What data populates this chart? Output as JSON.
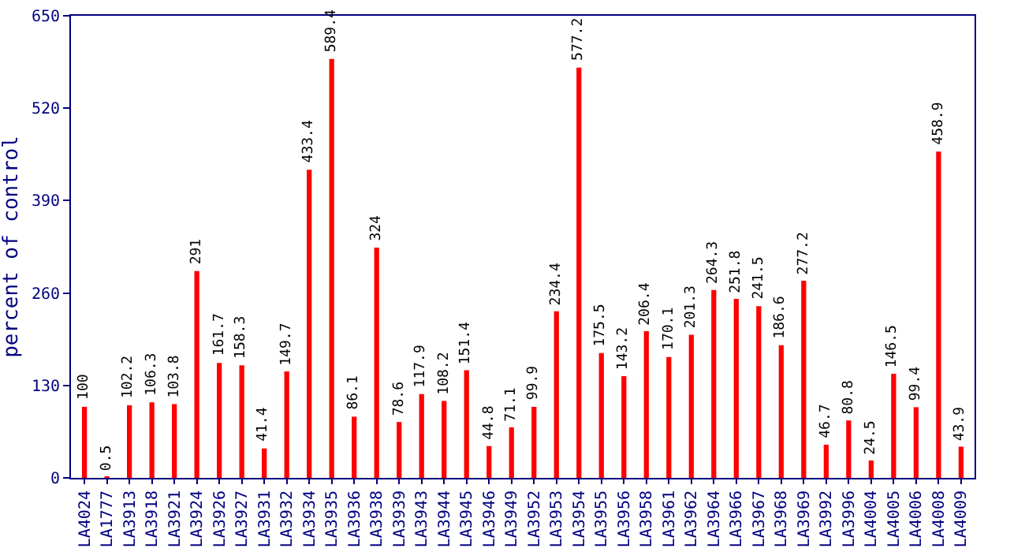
{
  "chart_data": {
    "type": "bar",
    "ylabel": "percent of control",
    "categories": [
      "LA4024",
      "LA1777",
      "LA3913",
      "LA3918",
      "LA3921",
      "LA3924",
      "LA3926",
      "LA3927",
      "LA3931",
      "LA3932",
      "LA3934",
      "LA3935",
      "LA3936",
      "LA3938",
      "LA3939",
      "LA3943",
      "LA3944",
      "LA3945",
      "LA3946",
      "LA3949",
      "LA3952",
      "LA3953",
      "LA3954",
      "LA3955",
      "LA3956",
      "LA3958",
      "LA3961",
      "LA3962",
      "LA3964",
      "LA3966",
      "LA3967",
      "LA3968",
      "LA3969",
      "LA3992",
      "LA3996",
      "LA4004",
      "LA4005",
      "LA4006",
      "LA4008",
      "LA4009"
    ],
    "values": [
      100,
      0.5,
      102.2,
      106.3,
      103.8,
      291,
      161.7,
      158.3,
      41.4,
      149.7,
      433.4,
      589.4,
      86.1,
      324,
      78.6,
      117.9,
      108.2,
      151.4,
      44.8,
      71.1,
      99.9,
      234.4,
      577.2,
      175.5,
      143.2,
      206.4,
      170.1,
      201.3,
      264.3,
      251.8,
      241.5,
      186.6,
      277.2,
      46.7,
      80.8,
      24.5,
      146.5,
      99.4,
      458.9,
      43.9
    ],
    "color": "#ff0000",
    "ylim": [
      0,
      650
    ],
    "yticks": [
      0,
      130,
      260,
      390,
      520,
      650
    ],
    "data_labels": true,
    "grid": false
  }
}
